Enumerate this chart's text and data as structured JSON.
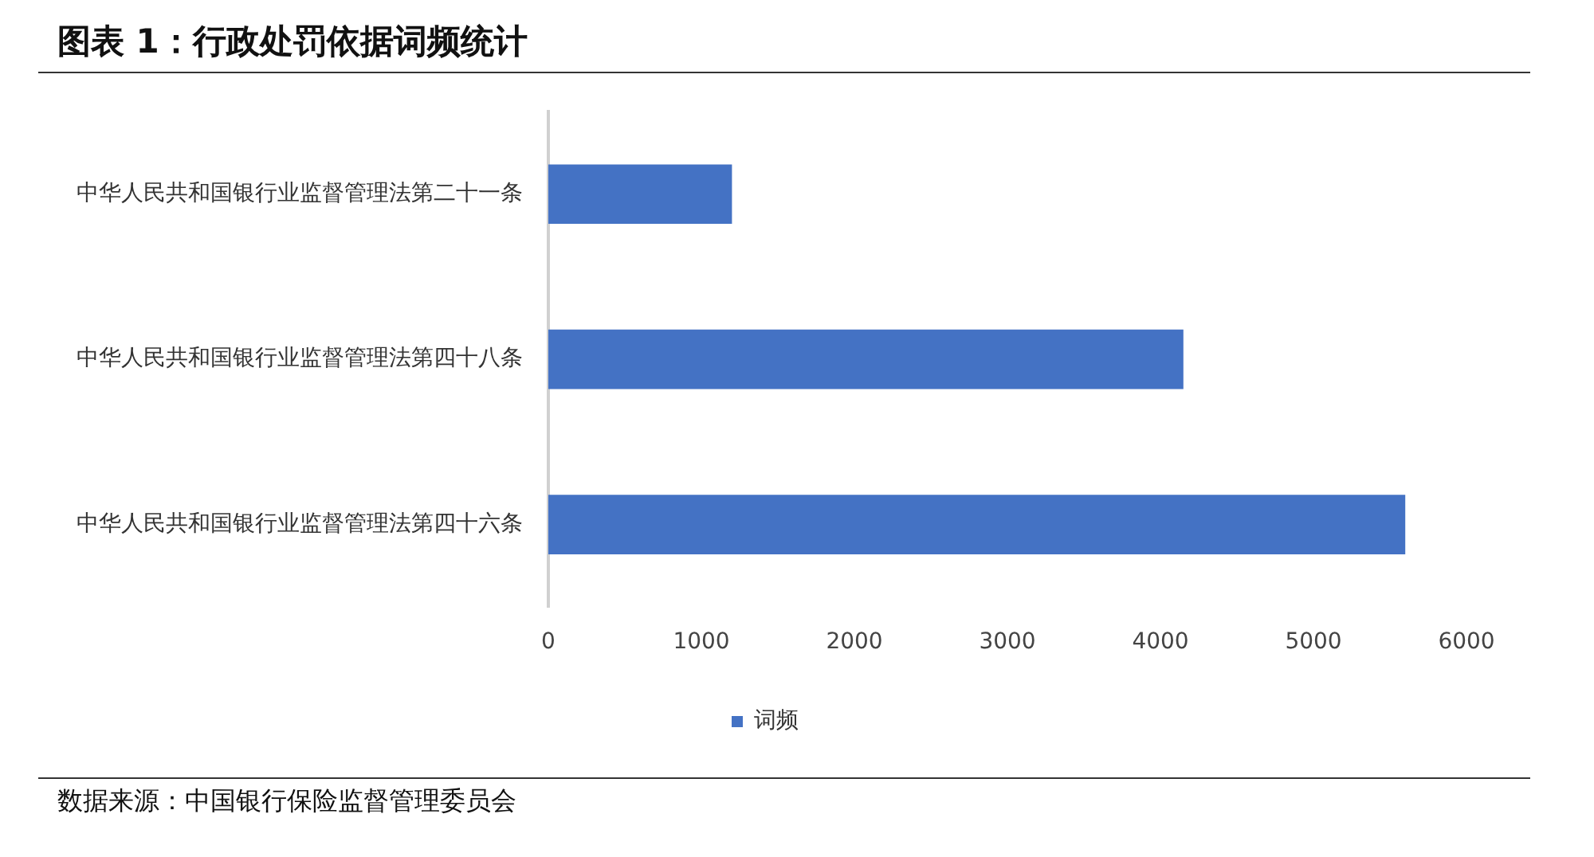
{
  "chart_data": {
    "type": "bar",
    "orientation": "horizontal",
    "title": "图表 1：行政处罚依据词频统计",
    "categories": [
      "中华人民共和国银行业监督管理法第二十一条",
      "中华人民共和国银行业监督管理法第四十八条",
      "中华人民共和国银行业监督管理法第四十六条"
    ],
    "series": [
      {
        "name": "词频",
        "color": "#4472c4",
        "values": [
          1200,
          4150,
          5600
        ]
      }
    ],
    "xlim": [
      0,
      6000
    ],
    "xticks": [
      0,
      1000,
      2000,
      3000,
      4000,
      5000,
      6000
    ],
    "legend": "bottom",
    "annotations": [
      "数据来源：中国银行保险监督管理委员会"
    ]
  }
}
